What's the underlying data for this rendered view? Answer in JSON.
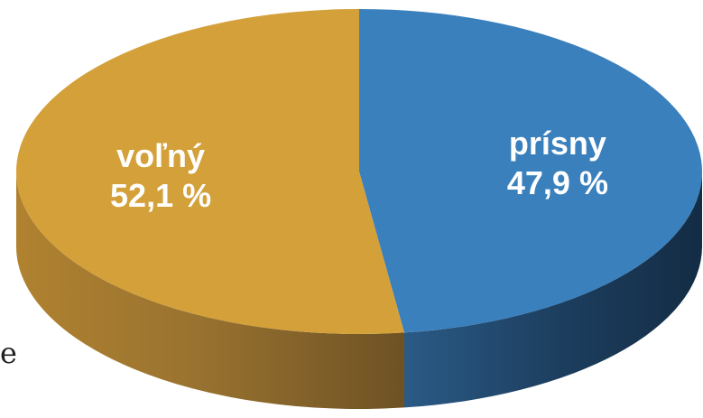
{
  "chart_data": {
    "type": "pie",
    "title": "",
    "slices": [
      {
        "label": "prísny",
        "value": 47.9,
        "display": "47,9 %",
        "color": "#3a80bd",
        "side_color": "#1d3d5c"
      },
      {
        "label": "voľný",
        "value": 52.1,
        "display": "52,1 %",
        "color": "#d4a039",
        "side_color": "#86632a"
      }
    ],
    "style": "3d"
  },
  "edge_text": "e"
}
